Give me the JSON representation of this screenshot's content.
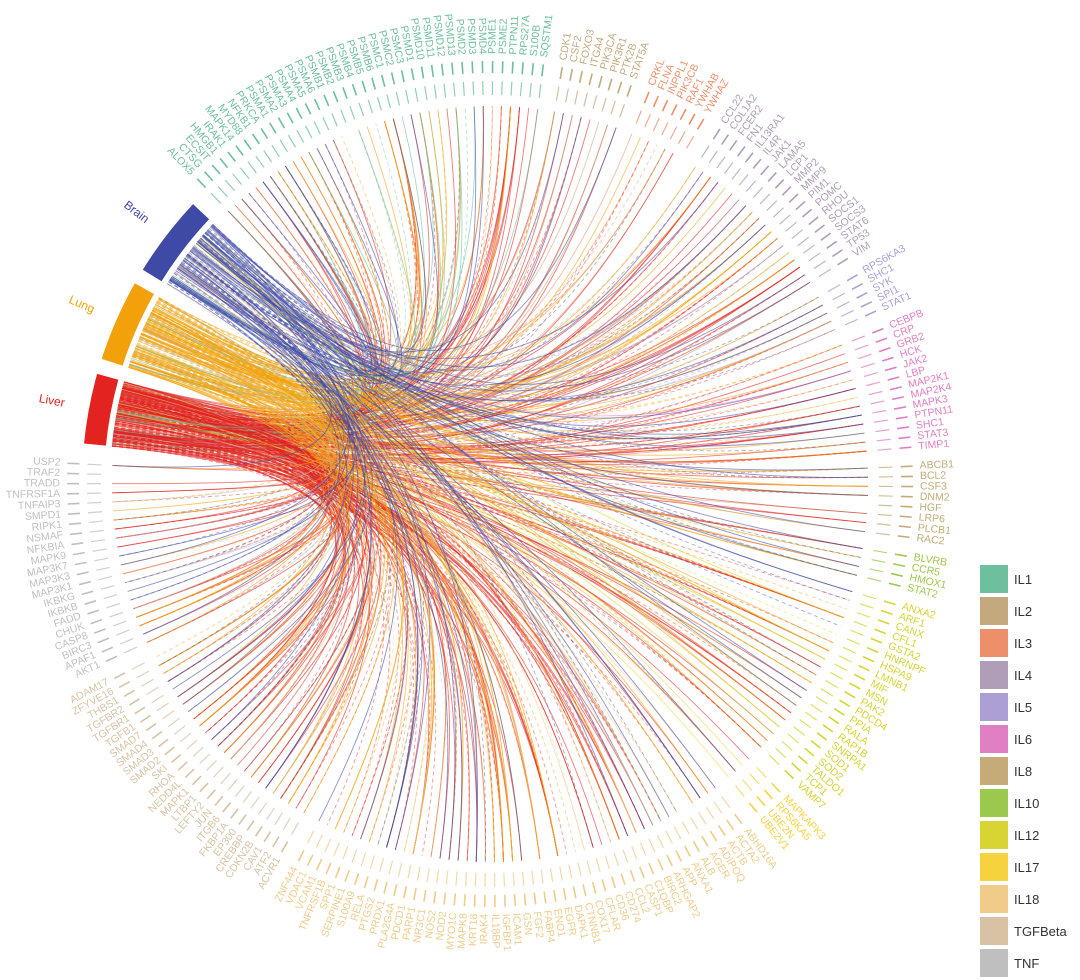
{
  "tissues": [
    {
      "name": "Brain",
      "color": "#3f4aa6",
      "weight": 0.3
    },
    {
      "name": "Lung",
      "color": "#f3a10b",
      "weight": 0.35
    },
    {
      "name": "Liver",
      "color": "#e2231f",
      "weight": 0.35
    }
  ],
  "pathways": [
    {
      "name": "IL1",
      "color": "#6dbf9e",
      "genes": [
        "ALOX5",
        "CTSG",
        "ECSIT",
        "HMGB1",
        "IRAK1",
        "MAPK14",
        "MYD88",
        "NFKB1",
        "PRKCA",
        "PSMA1",
        "PSMA2",
        "PSMA3",
        "PSMA4",
        "PSMA5",
        "PSMA6",
        "PSMB1",
        "PSMB2",
        "PSMB3",
        "PSMB4",
        "PSMB5",
        "PSMB6",
        "PSMC1",
        "PSMC2",
        "PSMC3",
        "PSMD1",
        "PSMD10",
        "PSMD11",
        "PSMD12",
        "PSMD13",
        "PSMD2",
        "PSMD3",
        "PSMD4",
        "PSME1",
        "PSME2",
        "PTPN11",
        "RPS27A",
        "S100B",
        "SQSTM1"
      ]
    },
    {
      "name": "IL2",
      "color": "#c3a97d",
      "genes": [
        "CDK1",
        "CSF2",
        "FOXO3",
        "ITGA4",
        "PIK3CA",
        "PIK3R1",
        "PTK2B",
        "STAT5A"
      ]
    },
    {
      "name": "IL3",
      "color": "#ee8f6c",
      "genes": [
        "CRKL",
        "FLNA",
        "INPPL1",
        "PIK3CB",
        "RAF1",
        "YWHAB",
        "YWHAZ"
      ]
    },
    {
      "name": "IL4",
      "color": "#b09db7",
      "genes": [
        "CCL22",
        "COL1A2",
        "FCER2",
        "FN1",
        "IL13RA1",
        "IL4R",
        "JAK1",
        "LAMA5",
        "LCP1",
        "MMP2",
        "MMP9",
        "PIM1",
        "POMC",
        "RHOU",
        "SOCS1",
        "SOCS3",
        "STAT6",
        "TP53",
        "VIM"
      ]
    },
    {
      "name": "IL5",
      "color": "#ab9fd6",
      "genes": [
        "RPS6KA3",
        "SHC1",
        "SYK",
        "SPI1",
        "STAT1"
      ]
    },
    {
      "name": "IL6",
      "color": "#e07fc4",
      "genes": [
        "CEBPB",
        "CRP",
        "GRB2",
        "HCK",
        "JAK2",
        "LBP",
        "MAP2K1",
        "MAP2K4",
        "MAPK3",
        "PTPN11",
        "SHC1",
        "STAT3",
        "TIMP1"
      ]
    },
    {
      "name": "IL8",
      "color": "#c4ab78",
      "genes": [
        "ABCB1",
        "BCL2",
        "CSF3",
        "DNM2",
        "HGF",
        "LRP6",
        "PLCB1",
        "RAC2"
      ]
    },
    {
      "name": "IL10",
      "color": "#9bc94d",
      "genes": [
        "BLVRB",
        "CCR5",
        "HMOX1",
        "STAT2"
      ]
    },
    {
      "name": "IL12",
      "color": "#d8d433",
      "genes": [
        "ANXA2",
        "ARF1",
        "CANX",
        "CFL1",
        "GSTA2",
        "HNRNPF",
        "HSPA9",
        "LMNB1",
        "MIF",
        "MSN",
        "PAK2",
        "PDCD4",
        "PPIA",
        "RALA",
        "RAP1B",
        "SNRPA1",
        "SOD1",
        "SOD2",
        "TALDO1",
        "TCP1",
        "VAMP7"
      ]
    },
    {
      "name": "IL17",
      "color": "#f6d33e",
      "genes": [
        "MAPKAPK3",
        "RPS6KA5",
        "UBE2N",
        "UBE2V1"
      ]
    },
    {
      "name": "IL18",
      "color": "#f0cb8a",
      "genes": [
        "ABHD16A",
        "ACTA2",
        "ACTB",
        "ADIPOQ",
        "AGER",
        "ALB",
        "ANXA1",
        "APP",
        "ARHGAP2",
        "BIRC2",
        "C1QBP",
        "CASP1",
        "CCL2",
        "CD274",
        "CD36",
        "CFLAR",
        "COX17",
        "CTNNB1",
        "DAPK1",
        "EGFR",
        "ENO1",
        "FABP4",
        "FGF2",
        "GSN",
        "ICAM1",
        "IGFBP1",
        "IL18BP",
        "IRAK4",
        "KRT18",
        "MAPK8",
        "MYO1C",
        "NOD2",
        "NOS2",
        "NR3C1",
        "PARP1",
        "PDCD1",
        "PLA2G4A",
        "PRDX1",
        "PTGS2",
        "RELA",
        "S100A9",
        "SERPINE1",
        "SPP1",
        "TNFRSF1B",
        "VCAM1",
        "VDAC1",
        "ZNF444"
      ]
    },
    {
      "name": "TGFBeta",
      "color": "#d9c2a3",
      "genes": [
        "ACVR1",
        "ATF2",
        "CAV1",
        "CDKN2B",
        "CREBBP",
        "EP300",
        "FKBP1A",
        "ITGB6",
        "JUN",
        "LEFTY2",
        "LTBP1",
        "MAPK1",
        "NEDD4L",
        "RHOA",
        "SKI",
        "SMAD2",
        "SMAD3",
        "SMAD4",
        "SMAD7",
        "TGFB1",
        "TGFBR1",
        "TGFBR2",
        "THBS1",
        "ZFYVE16",
        "ADAM17"
      ]
    },
    {
      "name": "TNF",
      "color": "#bfbfc0",
      "genes": [
        "AKT1",
        "APAF1",
        "BIRC3",
        "CASP8",
        "CHUK",
        "FADD",
        "IKBKB",
        "IKBKG",
        "MAP3K1",
        "MAP3K3",
        "MAP3K7",
        "MAPK9",
        "NFKBIA",
        "NSMAF",
        "RIPK1",
        "SMPD1",
        "TNFAIP3",
        "TNFRSF1A",
        "TRADD",
        "TRAF2",
        "USP2"
      ]
    }
  ]
}
